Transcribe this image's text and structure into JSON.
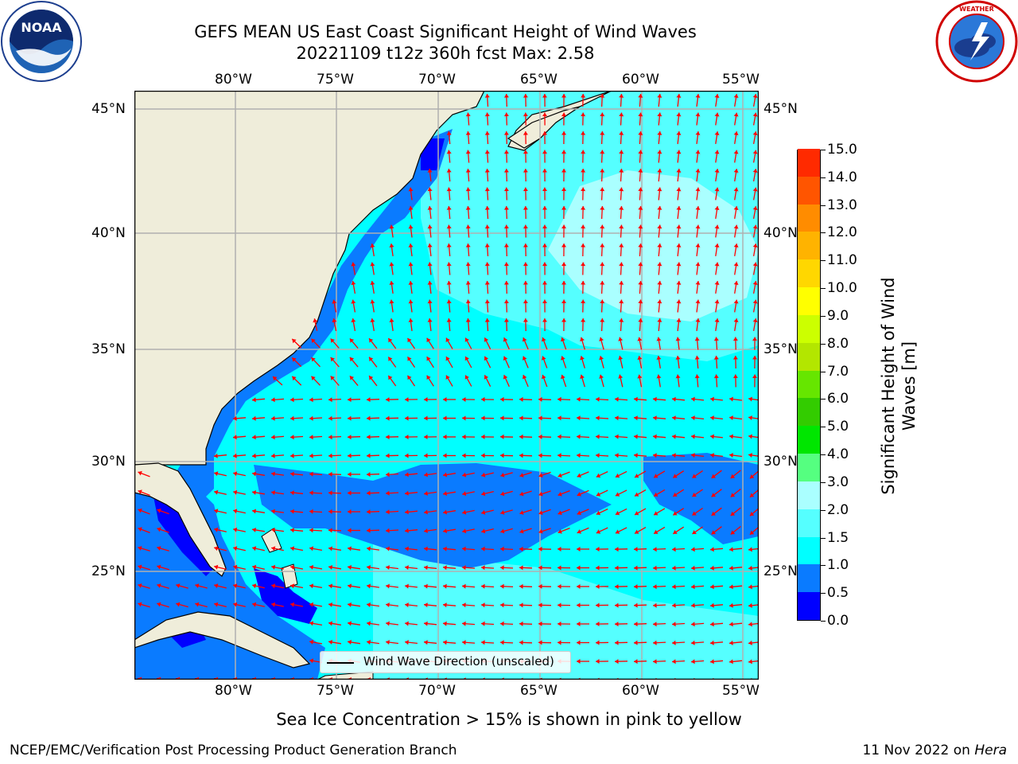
{
  "title": {
    "line1": "GEFS MEAN US East Coast Significant Height of Wind Waves",
    "line2": "20221109 t12z 360h fcst   Max: 2.58"
  },
  "logos": {
    "left": "noaa-logo",
    "right": "nws-logo",
    "left_text": "NOAA",
    "right_text": "NATIONAL WEATHER SERVICE"
  },
  "map": {
    "lon_labels": [
      "80°W",
      "75°W",
      "70°W",
      "65°W",
      "60°W",
      "55°W"
    ],
    "lat_labels": [
      "45°N",
      "40°N",
      "35°N",
      "30°N",
      "25°N"
    ],
    "legend_label": "Wind Wave Direction (unscaled)",
    "colors": {
      "land": "#efedda",
      "coast": "#000000",
      "grid": "#b0b0b0",
      "arrow": "#ff0000"
    }
  },
  "colorbar": {
    "label": "Significant Height of Wind Waves [m]",
    "ticks": [
      "0.0",
      "0.5",
      "1.0",
      "1.5",
      "2.0",
      "3.0",
      "4.0",
      "5.0",
      "6.0",
      "7.0",
      "8.0",
      "9.0",
      "10.0",
      "11.0",
      "12.0",
      "13.0",
      "14.0",
      "15.0"
    ],
    "colors": [
      "#0000ff",
      "#0a7bff",
      "#00ffff",
      "#55ffff",
      "#aaffff",
      "#55ff80",
      "#00e600",
      "#33cc00",
      "#66e600",
      "#b3e600",
      "#ccff00",
      "#ffff00",
      "#ffd700",
      "#ffb300",
      "#ff8c00",
      "#ff5500",
      "#ff2a00"
    ]
  },
  "caption": "Sea Ice Concentration > 15% is shown in pink to yellow",
  "footer": {
    "left": "NCEP/EMC/Verification Post Processing Product Generation Branch",
    "right_date": "11 Nov 2022 on ",
    "right_host": "Hera"
  }
}
